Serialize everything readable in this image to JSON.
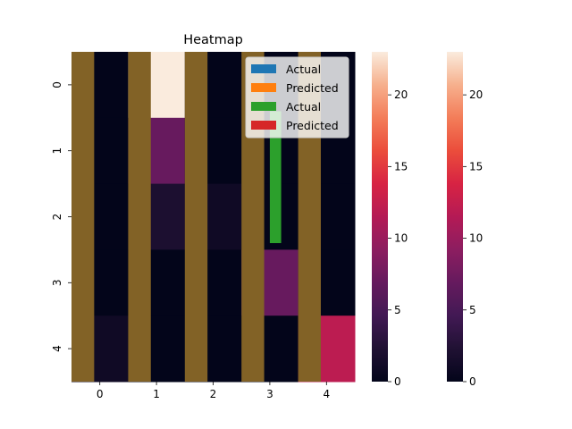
{
  "chart_data": {
    "type": "heatmap",
    "title": "Heatmap",
    "xlabel": "",
    "ylabel": "",
    "x_categories": [
      "0",
      "1",
      "2",
      "3",
      "4"
    ],
    "y_categories": [
      "0",
      "1",
      "2",
      "3",
      "4"
    ],
    "matrix": [
      [
        0,
        23,
        0,
        0,
        0
      ],
      [
        0,
        7,
        0,
        0,
        0
      ],
      [
        0,
        2,
        1,
        0,
        0
      ],
      [
        0,
        0,
        0,
        7,
        0
      ],
      [
        1,
        0,
        0,
        0,
        12
      ]
    ],
    "colormap": "rocket",
    "vmin": 0,
    "vmax": 23,
    "overlay_bars": [
      {
        "name": "Actual",
        "color": "#1f77b4",
        "values": [
          0,
          0,
          0,
          0,
          0
        ]
      },
      {
        "name": "Predicted",
        "color": "#ff7f0e",
        "values": [
          0,
          0,
          0,
          0,
          0
        ]
      },
      {
        "name": "Actual",
        "color": "#2ca02c",
        "values": [
          0,
          0,
          0,
          2.5,
          0
        ]
      },
      {
        "name": "Predicted",
        "color": "#d62728",
        "values": [
          0,
          0,
          0,
          0,
          0
        ]
      }
    ],
    "background_band_color": "#826226",
    "legend_placement": "top-right",
    "colorbars": [
      {
        "ticks": [
          0,
          5,
          10,
          15,
          20
        ]
      },
      {
        "ticks": [
          0,
          5,
          10,
          15,
          20
        ]
      }
    ]
  }
}
